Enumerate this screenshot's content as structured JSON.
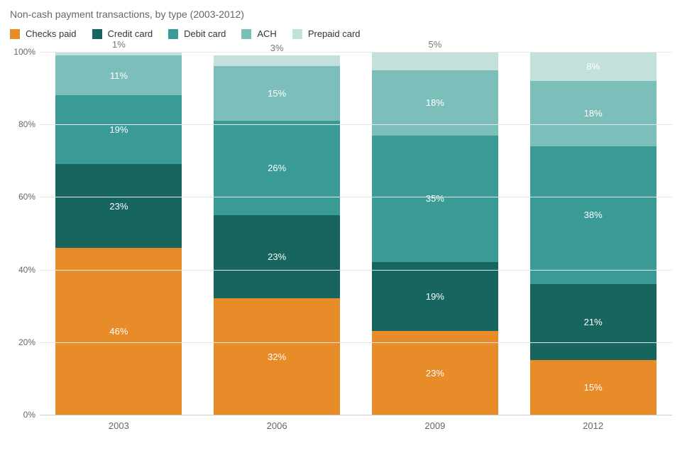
{
  "chart": {
    "type": "stacked-bar-100pct",
    "title": "Non-cash payment transactions, by type (2003-2012)",
    "title_color": "#666666",
    "title_fontsize": 14,
    "background_color": "#ffffff",
    "grid_color": "#e6e6e6",
    "axis_line_color": "#cccccc",
    "label_fontsize": 13,
    "tick_fontsize": 12,
    "tick_color": "#666666",
    "segment_label_color": "#ffffff",
    "outside_label_color": "#777777",
    "ylim": [
      0,
      100
    ],
    "y_ticks": [
      0,
      20,
      40,
      60,
      80,
      100
    ],
    "y_tick_labels": [
      "0%",
      "20%",
      "40%",
      "60%",
      "80%",
      "100%"
    ],
    "categories": [
      "2003",
      "2006",
      "2009",
      "2012"
    ],
    "series": [
      {
        "name": "Checks paid",
        "color": "#e78c28"
      },
      {
        "name": "Credit card",
        "color": "#16655f"
      },
      {
        "name": "Debit card",
        "color": "#3a9b96"
      },
      {
        "name": "ACH",
        "color": "#7cbfba"
      },
      {
        "name": "Prepaid card",
        "color": "#c3e0dd"
      }
    ],
    "stacks": [
      {
        "category": "2003",
        "segments": [
          {
            "series": 0,
            "value": 46,
            "label": "46%"
          },
          {
            "series": 1,
            "value": 23,
            "label": "23%"
          },
          {
            "series": 2,
            "value": 19,
            "label": "19%"
          },
          {
            "series": 3,
            "value": 11,
            "label": "11%"
          },
          {
            "series": 4,
            "value": 1,
            "label": "1%",
            "label_outside": true
          }
        ]
      },
      {
        "category": "2006",
        "segments": [
          {
            "series": 0,
            "value": 32,
            "label": "32%"
          },
          {
            "series": 1,
            "value": 23,
            "label": "23%"
          },
          {
            "series": 2,
            "value": 26,
            "label": "26%"
          },
          {
            "series": 3,
            "value": 15,
            "label": "15%"
          },
          {
            "series": 4,
            "value": 3,
            "label": "3%",
            "label_outside": true
          }
        ]
      },
      {
        "category": "2009",
        "segments": [
          {
            "series": 0,
            "value": 23,
            "label": "23%"
          },
          {
            "series": 1,
            "value": 19,
            "label": "19%"
          },
          {
            "series": 2,
            "value": 35,
            "label": "35%"
          },
          {
            "series": 3,
            "value": 18,
            "label": "18%"
          },
          {
            "series": 4,
            "value": 5,
            "label": "5%",
            "label_outside": true
          }
        ]
      },
      {
        "category": "2012",
        "segments": [
          {
            "series": 0,
            "value": 15,
            "label": "15%"
          },
          {
            "series": 1,
            "value": 21,
            "label": "21%"
          },
          {
            "series": 2,
            "value": 38,
            "label": "38%"
          },
          {
            "series": 3,
            "value": 18,
            "label": "18%"
          },
          {
            "series": 4,
            "value": 8,
            "label": "8%"
          }
        ]
      }
    ]
  }
}
